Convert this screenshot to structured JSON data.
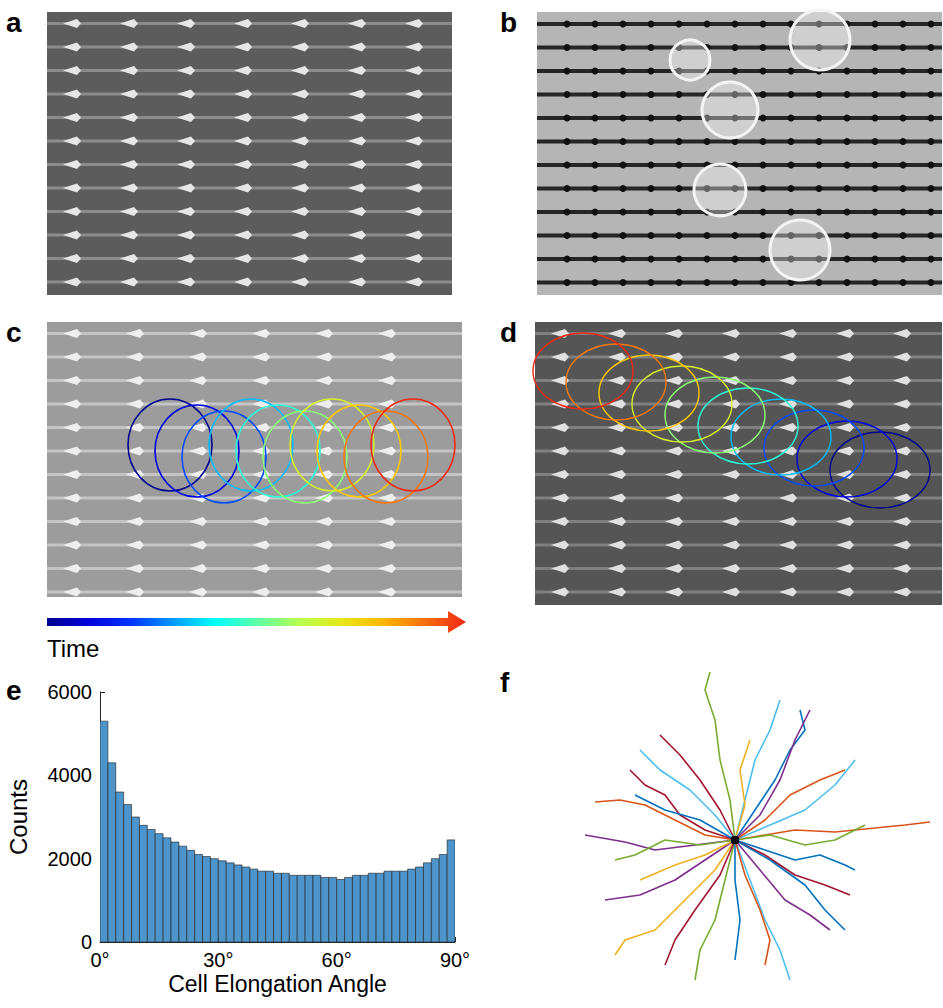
{
  "panel_letters": [
    "a",
    "b",
    "c",
    "d",
    "e",
    "f"
  ],
  "colorbar": {
    "label": "Time"
  },
  "chart_data": [
    {
      "type": "histogram",
      "xlabel": "Cell Elongation Angle",
      "ylabel": "Counts",
      "bins": [
        0,
        2,
        4,
        6,
        8,
        10,
        12,
        14,
        16,
        18,
        20,
        22,
        24,
        26,
        28,
        30,
        32,
        34,
        36,
        38,
        40,
        42,
        44,
        46,
        48,
        50,
        52,
        54,
        56,
        58,
        60,
        62,
        64,
        66,
        68,
        70,
        72,
        74,
        76,
        78,
        80,
        82,
        84,
        86,
        88,
        90
      ],
      "values": [
        5300,
        4300,
        3600,
        3300,
        3000,
        2800,
        2700,
        2600,
        2500,
        2400,
        2300,
        2200,
        2100,
        2050,
        2000,
        1950,
        1900,
        1850,
        1800,
        1750,
        1700,
        1700,
        1650,
        1650,
        1600,
        1600,
        1600,
        1600,
        1550,
        1550,
        1500,
        1550,
        1600,
        1600,
        1650,
        1650,
        1700,
        1700,
        1700,
        1750,
        1800,
        1900,
        2000,
        2100,
        2450
      ],
      "color": "#4D94CB",
      "xlim": [
        0,
        90
      ],
      "ylim": [
        0,
        6000
      ],
      "xticks": [
        {
          "value": 0,
          "label": "0°"
        },
        {
          "value": 30,
          "label": "30°"
        },
        {
          "value": 60,
          "label": "60°"
        },
        {
          "value": 90,
          "label": "90°"
        }
      ],
      "yticks": [
        0,
        2000,
        4000,
        6000
      ],
      "grid": false
    },
    {
      "type": "line",
      "tick_labels": false,
      "xlim": [
        -160,
        200
      ],
      "ylim": [
        -150,
        170
      ],
      "series": [
        {
          "color": "#D95319",
          "x": [
            0,
            30,
            60,
            100,
            140,
            170,
            195
          ],
          "y": [
            0,
            5,
            10,
            8,
            12,
            15,
            18
          ]
        },
        {
          "color": "#D95319",
          "x": [
            0,
            -30,
            -60,
            -90,
            -115,
            -140
          ],
          "y": [
            0,
            5,
            20,
            35,
            40,
            38
          ]
        },
        {
          "color": "#7E2F8E",
          "x": [
            0,
            -40,
            -80,
            -110,
            -150
          ],
          "y": [
            0,
            -5,
            -10,
            -2,
            5
          ]
        },
        {
          "color": "#A2142F",
          "x": [
            0,
            -30,
            -55,
            -70,
            -90,
            -105
          ],
          "y": [
            0,
            10,
            25,
            45,
            55,
            70
          ]
        },
        {
          "color": "#77AC30",
          "x": [
            0,
            -5,
            -15,
            -20,
            -30,
            -25
          ],
          "y": [
            0,
            40,
            80,
            120,
            150,
            168
          ]
        },
        {
          "color": "#4DBEEE",
          "x": [
            0,
            10,
            20,
            35,
            45
          ],
          "y": [
            0,
            40,
            80,
            110,
            140
          ]
        },
        {
          "color": "#0072BD",
          "x": [
            0,
            20,
            40,
            55,
            70,
            65
          ],
          "y": [
            0,
            30,
            60,
            90,
            110,
            130
          ]
        },
        {
          "color": "#7E2F8E",
          "x": [
            0,
            25,
            45,
            60,
            75
          ],
          "y": [
            0,
            25,
            60,
            100,
            130
          ]
        },
        {
          "color": "#EDB120",
          "x": [
            0,
            -20,
            -50,
            -80,
            -110,
            -120
          ],
          "y": [
            0,
            -30,
            -60,
            -90,
            -100,
            -115
          ]
        },
        {
          "color": "#77AC30",
          "x": [
            0,
            -10,
            -20,
            -35,
            -40
          ],
          "y": [
            0,
            -40,
            -80,
            -110,
            -140
          ]
        },
        {
          "color": "#4DBEEE",
          "x": [
            0,
            15,
            30,
            45,
            55
          ],
          "y": [
            0,
            -40,
            -80,
            -110,
            -140
          ]
        },
        {
          "color": "#0072BD",
          "x": [
            0,
            0,
            5,
            0
          ],
          "y": [
            0,
            -40,
            -80,
            -120
          ]
        },
        {
          "color": "#0072BD",
          "x": [
            0,
            30,
            60,
            85,
            110,
            120
          ],
          "y": [
            0,
            -10,
            -20,
            -15,
            -25,
            -30
          ]
        },
        {
          "color": "#7E2F8E",
          "x": [
            0,
            -30,
            -60,
            -95,
            -130
          ],
          "y": [
            0,
            -20,
            -40,
            -55,
            -60
          ]
        },
        {
          "color": "#A2142F",
          "x": [
            0,
            30,
            60,
            90,
            115
          ],
          "y": [
            0,
            -15,
            -35,
            -45,
            -55
          ]
        },
        {
          "color": "#EDB120",
          "x": [
            0,
            -30,
            -60,
            -95
          ],
          "y": [
            0,
            -15,
            -25,
            -40
          ]
        },
        {
          "color": "#4DBEEE",
          "x": [
            0,
            35,
            70,
            100,
            120
          ],
          "y": [
            0,
            15,
            30,
            55,
            80
          ]
        },
        {
          "color": "#77AC30",
          "x": [
            0,
            35,
            70,
            100,
            130
          ],
          "y": [
            0,
            5,
            -5,
            0,
            15
          ]
        },
        {
          "color": "#A2142F",
          "x": [
            0,
            -15,
            -35,
            -55,
            -75
          ],
          "y": [
            0,
            30,
            60,
            85,
            105
          ]
        },
        {
          "color": "#D95319",
          "x": [
            0,
            10,
            25,
            35,
            30
          ],
          "y": [
            0,
            -35,
            -70,
            -100,
            -125
          ]
        },
        {
          "color": "#0072BD",
          "x": [
            0,
            -35,
            -70,
            -100
          ],
          "y": [
            0,
            20,
            30,
            45
          ]
        },
        {
          "color": "#7E2F8E",
          "x": [
            0,
            25,
            50,
            75,
            95
          ],
          "y": [
            0,
            -30,
            -60,
            -75,
            -90
          ]
        },
        {
          "color": "#EDB120",
          "x": [
            0,
            10,
            5,
            15
          ],
          "y": [
            0,
            35,
            70,
            100
          ]
        },
        {
          "color": "#A2142F",
          "x": [
            0,
            -15,
            -40,
            -60,
            -70
          ],
          "y": [
            0,
            -35,
            -70,
            -100,
            -125
          ]
        },
        {
          "color": "#4DBEEE",
          "x": [
            0,
            -20,
            -45,
            -75,
            -95
          ],
          "y": [
            0,
            25,
            50,
            70,
            90
          ]
        },
        {
          "color": "#77AC30",
          "x": [
            0,
            -35,
            -70,
            -100,
            -120
          ],
          "y": [
            0,
            -5,
            0,
            -15,
            -20
          ]
        },
        {
          "color": "#D95319",
          "x": [
            0,
            30,
            55,
            85,
            110
          ],
          "y": [
            0,
            20,
            45,
            60,
            70
          ]
        },
        {
          "color": "#0072BD",
          "x": [
            0,
            35,
            70,
            90,
            110
          ],
          "y": [
            0,
            -20,
            -45,
            -70,
            -90
          ]
        }
      ]
    }
  ]
}
